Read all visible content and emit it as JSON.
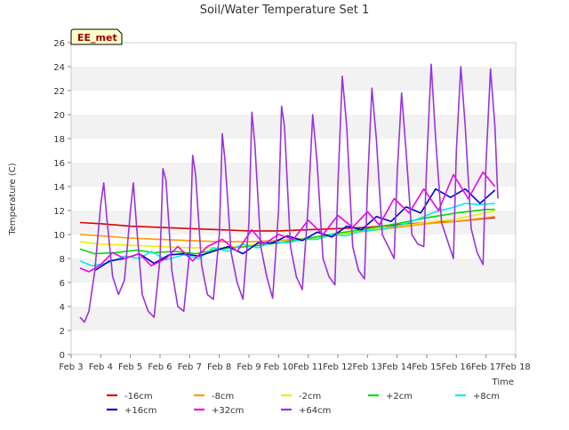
{
  "chart_data": {
    "type": "line",
    "title": "Soil/Water Temperature Set 1",
    "xlabel": "Time",
    "ylabel": "Temperature (C)",
    "badge": "EE_met",
    "x_ticks": [
      "Feb 3",
      "Feb 4",
      "Feb 5",
      "Feb 6",
      "Feb 7",
      "Feb 8",
      "Feb 9",
      "Feb 10",
      "Feb 11",
      "Feb 12",
      "Feb 13",
      "Feb 14",
      "Feb 15",
      "Feb 16",
      "Feb 17",
      "Feb 18"
    ],
    "xlim": [
      3,
      18
    ],
    "ylim": [
      0,
      26
    ],
    "y_ticks": [
      0,
      2,
      4,
      6,
      8,
      10,
      12,
      14,
      16,
      18,
      20,
      22,
      24,
      26
    ],
    "grid": "horizontal bands",
    "legend_position": "bottom",
    "series": [
      {
        "name": "-16cm",
        "color": "#dd0000",
        "points": [
          [
            3.3,
            11.0
          ],
          [
            4,
            10.9
          ],
          [
            5,
            10.7
          ],
          [
            6,
            10.6
          ],
          [
            7,
            10.5
          ],
          [
            8,
            10.4
          ],
          [
            9,
            10.3
          ],
          [
            10,
            10.3
          ],
          [
            11,
            10.4
          ],
          [
            12,
            10.5
          ],
          [
            13,
            10.6
          ],
          [
            14,
            10.8
          ],
          [
            15,
            11.0
          ],
          [
            16,
            11.1
          ],
          [
            16.8,
            11.3
          ],
          [
            17.3,
            11.4
          ]
        ]
      },
      {
        "name": "-8cm",
        "color": "#ff9900",
        "points": [
          [
            3.3,
            10.0
          ],
          [
            4,
            9.9
          ],
          [
            5,
            9.7
          ],
          [
            6,
            9.6
          ],
          [
            7,
            9.5
          ],
          [
            8,
            9.4
          ],
          [
            9,
            9.4
          ],
          [
            10,
            9.5
          ],
          [
            11,
            9.7
          ],
          [
            12,
            10.0
          ],
          [
            13,
            10.3
          ],
          [
            14,
            10.6
          ],
          [
            15,
            10.9
          ],
          [
            16,
            11.1
          ],
          [
            17,
            11.4
          ],
          [
            17.3,
            11.5
          ]
        ]
      },
      {
        "name": "-2cm",
        "color": "#eeee00",
        "points": [
          [
            3.3,
            9.4
          ],
          [
            4,
            9.2
          ],
          [
            5,
            9.1
          ],
          [
            6,
            9.0
          ],
          [
            7,
            8.9
          ],
          [
            8,
            8.9
          ],
          [
            9,
            9.1
          ],
          [
            10,
            9.3
          ],
          [
            11,
            9.6
          ],
          [
            12,
            10.0
          ],
          [
            13,
            10.4
          ],
          [
            14,
            10.7
          ],
          [
            15,
            11.0
          ],
          [
            16,
            11.3
          ],
          [
            17,
            11.8
          ],
          [
            17.3,
            12.0
          ]
        ]
      },
      {
        "name": "+2cm",
        "color": "#00dd00",
        "points": [
          [
            3.3,
            8.8
          ],
          [
            3.8,
            8.4
          ],
          [
            4.5,
            8.5
          ],
          [
            5.2,
            8.7
          ],
          [
            5.8,
            8.5
          ],
          [
            6.5,
            8.6
          ],
          [
            7.2,
            8.4
          ],
          [
            8,
            8.8
          ],
          [
            9,
            9.0
          ],
          [
            10,
            9.3
          ],
          [
            11,
            9.7
          ],
          [
            12,
            10.1
          ],
          [
            13,
            10.5
          ],
          [
            14,
            10.9
          ],
          [
            15,
            11.4
          ],
          [
            16,
            11.8
          ],
          [
            17,
            12.1
          ],
          [
            17.3,
            12.1
          ]
        ]
      },
      {
        "name": "+8cm",
        "color": "#00eeee",
        "points": [
          [
            3.3,
            7.8
          ],
          [
            3.7,
            7.4
          ],
          [
            4.2,
            7.6
          ],
          [
            4.8,
            8.2
          ],
          [
            5.3,
            8.0
          ],
          [
            5.7,
            8.6
          ],
          [
            6.2,
            7.9
          ],
          [
            6.8,
            8.3
          ],
          [
            7.3,
            8.0
          ],
          [
            7.8,
            8.9
          ],
          [
            8.3,
            8.6
          ],
          [
            8.8,
            9.2
          ],
          [
            9.3,
            8.9
          ],
          [
            9.8,
            9.4
          ],
          [
            10.3,
            9.3
          ],
          [
            10.8,
            9.6
          ],
          [
            11.3,
            9.6
          ],
          [
            11.8,
            10.0
          ],
          [
            12.3,
            9.9
          ],
          [
            12.8,
            10.3
          ],
          [
            13.3,
            10.4
          ],
          [
            13.8,
            10.6
          ],
          [
            14.3,
            10.9
          ],
          [
            14.8,
            11.4
          ],
          [
            15.3,
            11.9
          ],
          [
            15.8,
            12.2
          ],
          [
            16.3,
            12.6
          ],
          [
            16.8,
            12.5
          ],
          [
            17.3,
            12.6
          ]
        ]
      },
      {
        "name": "+16cm",
        "color": "#0000cc",
        "points": [
          [
            3.8,
            7.0
          ],
          [
            4.3,
            7.8
          ],
          [
            4.8,
            8.0
          ],
          [
            5.3,
            8.4
          ],
          [
            5.8,
            7.6
          ],
          [
            6.3,
            8.3
          ],
          [
            6.8,
            8.4
          ],
          [
            7.3,
            8.2
          ],
          [
            7.8,
            8.6
          ],
          [
            8.3,
            9.0
          ],
          [
            8.8,
            8.4
          ],
          [
            9.3,
            9.3
          ],
          [
            9.8,
            9.3
          ],
          [
            10.3,
            9.9
          ],
          [
            10.8,
            9.5
          ],
          [
            11.3,
            10.2
          ],
          [
            11.8,
            9.8
          ],
          [
            12.3,
            10.7
          ],
          [
            12.8,
            10.4
          ],
          [
            13.3,
            11.5
          ],
          [
            13.8,
            11.1
          ],
          [
            14.3,
            12.3
          ],
          [
            14.8,
            11.8
          ],
          [
            15.3,
            13.8
          ],
          [
            15.8,
            13.1
          ],
          [
            16.3,
            13.8
          ],
          [
            16.8,
            12.6
          ],
          [
            17.3,
            13.7
          ]
        ]
      },
      {
        "name": "+32cm",
        "color": "#ee00ee",
        "points": [
          [
            3.3,
            7.2
          ],
          [
            3.6,
            6.9
          ],
          [
            4.0,
            7.5
          ],
          [
            4.4,
            8.5
          ],
          [
            4.8,
            8.0
          ],
          [
            5.3,
            8.4
          ],
          [
            5.7,
            7.4
          ],
          [
            6.2,
            8.0
          ],
          [
            6.6,
            9.0
          ],
          [
            7.1,
            7.8
          ],
          [
            7.6,
            9.0
          ],
          [
            8.1,
            9.6
          ],
          [
            8.6,
            8.6
          ],
          [
            9.1,
            10.4
          ],
          [
            9.5,
            9.2
          ],
          [
            10.0,
            10.0
          ],
          [
            10.5,
            9.6
          ],
          [
            11.0,
            11.2
          ],
          [
            11.5,
            10.0
          ],
          [
            12.0,
            11.6
          ],
          [
            12.5,
            10.6
          ],
          [
            13.0,
            11.9
          ],
          [
            13.4,
            10.8
          ],
          [
            13.9,
            13.0
          ],
          [
            14.4,
            11.8
          ],
          [
            14.9,
            13.8
          ],
          [
            15.4,
            12.0
          ],
          [
            15.9,
            15.0
          ],
          [
            16.4,
            13.0
          ],
          [
            16.9,
            15.2
          ],
          [
            17.3,
            14.0
          ]
        ]
      },
      {
        "name": "+64cm",
        "color": "#9933dd",
        "points": [
          [
            3.3,
            3.1
          ],
          [
            3.45,
            2.7
          ],
          [
            3.6,
            3.6
          ],
          [
            3.8,
            7.0
          ],
          [
            4.0,
            12.5
          ],
          [
            4.1,
            14.3
          ],
          [
            4.2,
            11.5
          ],
          [
            4.4,
            6.5
          ],
          [
            4.6,
            5.0
          ],
          [
            4.8,
            6.2
          ],
          [
            5.0,
            12.0
          ],
          [
            5.1,
            14.3
          ],
          [
            5.2,
            11.0
          ],
          [
            5.4,
            5.0
          ],
          [
            5.6,
            3.6
          ],
          [
            5.8,
            3.1
          ],
          [
            6.0,
            8.0
          ],
          [
            6.1,
            15.5
          ],
          [
            6.2,
            14.5
          ],
          [
            6.4,
            7.0
          ],
          [
            6.6,
            4.0
          ],
          [
            6.8,
            3.6
          ],
          [
            7.0,
            8.5
          ],
          [
            7.1,
            16.6
          ],
          [
            7.2,
            15.0
          ],
          [
            7.4,
            7.5
          ],
          [
            7.6,
            5.0
          ],
          [
            7.8,
            4.6
          ],
          [
            8.0,
            10.0
          ],
          [
            8.1,
            18.4
          ],
          [
            8.2,
            16.0
          ],
          [
            8.4,
            8.5
          ],
          [
            8.6,
            6.0
          ],
          [
            8.8,
            4.6
          ],
          [
            9.0,
            11.0
          ],
          [
            9.1,
            20.2
          ],
          [
            9.2,
            17.5
          ],
          [
            9.4,
            9.0
          ],
          [
            9.6,
            6.5
          ],
          [
            9.8,
            4.7
          ],
          [
            10.0,
            12.0
          ],
          [
            10.1,
            20.7
          ],
          [
            10.2,
            19.0
          ],
          [
            10.4,
            9.0
          ],
          [
            10.6,
            6.5
          ],
          [
            10.8,
            5.4
          ],
          [
            11.0,
            12.5
          ],
          [
            11.15,
            20.0
          ],
          [
            11.3,
            16.0
          ],
          [
            11.5,
            8.0
          ],
          [
            11.7,
            6.5
          ],
          [
            11.9,
            5.8
          ],
          [
            12.0,
            14.0
          ],
          [
            12.15,
            23.2
          ],
          [
            12.3,
            19.0
          ],
          [
            12.5,
            9.0
          ],
          [
            12.7,
            7.0
          ],
          [
            12.9,
            6.3
          ],
          [
            13.0,
            14.0
          ],
          [
            13.15,
            22.2
          ],
          [
            13.3,
            18.0
          ],
          [
            13.5,
            10.0
          ],
          [
            13.7,
            9.0
          ],
          [
            13.9,
            8.0
          ],
          [
            14.0,
            15.0
          ],
          [
            14.15,
            21.8
          ],
          [
            14.3,
            17.0
          ],
          [
            14.5,
            10.0
          ],
          [
            14.7,
            9.2
          ],
          [
            14.9,
            9.0
          ],
          [
            15.0,
            16.0
          ],
          [
            15.15,
            24.2
          ],
          [
            15.3,
            18.0
          ],
          [
            15.5,
            11.0
          ],
          [
            15.7,
            9.5
          ],
          [
            15.9,
            8.0
          ],
          [
            16.0,
            17.0
          ],
          [
            16.15,
            24.0
          ],
          [
            16.3,
            19.0
          ],
          [
            16.5,
            10.5
          ],
          [
            16.7,
            8.5
          ],
          [
            16.9,
            7.5
          ],
          [
            17.0,
            16.0
          ],
          [
            17.15,
            23.8
          ],
          [
            17.3,
            19.0
          ],
          [
            17.4,
            13.0
          ]
        ]
      }
    ]
  }
}
